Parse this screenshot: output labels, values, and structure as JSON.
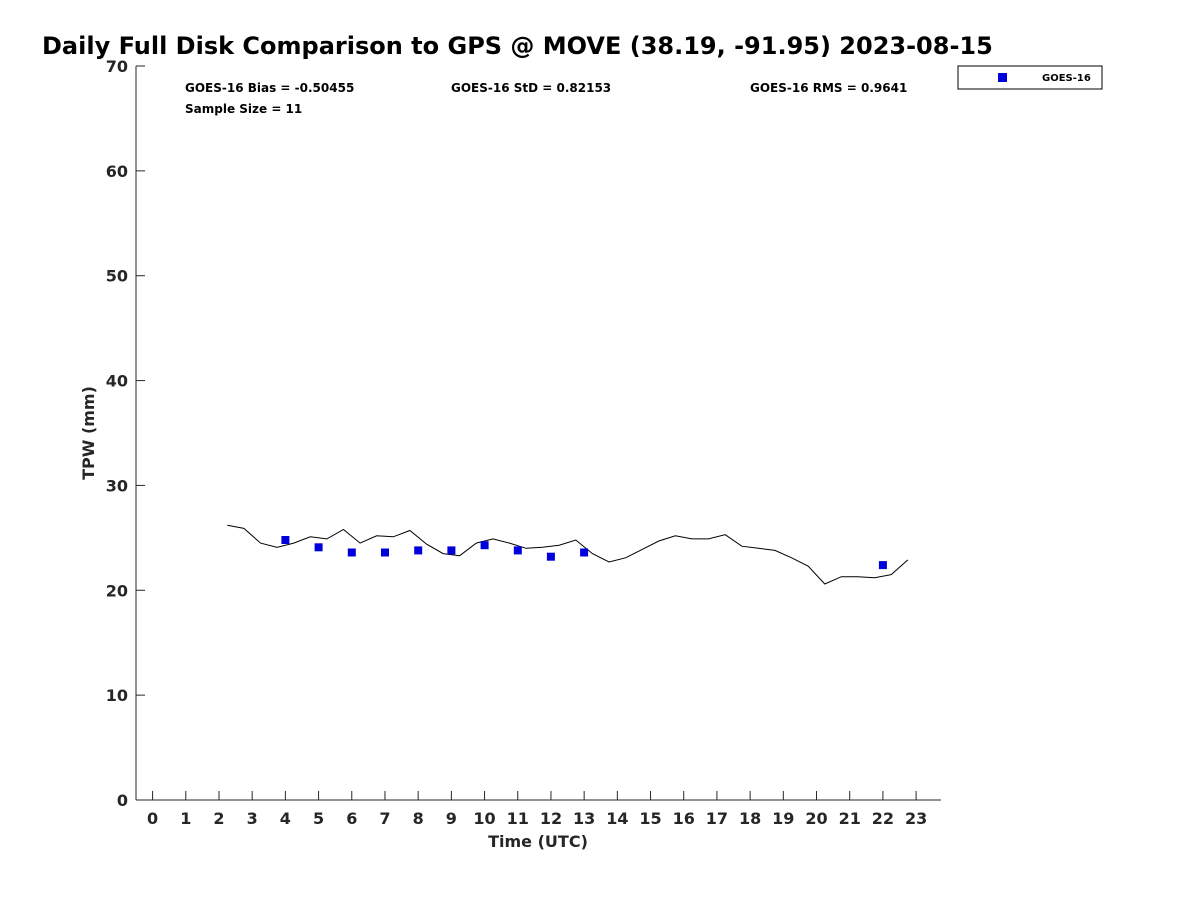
{
  "chart_data": {
    "type": "scatter",
    "title": "Daily Full Disk Comparison to GPS @ MOVE (38.19, -91.95) 2023-08-15",
    "xlabel": "Time (UTC)",
    "ylabel": "TPW (mm)",
    "xlim": [
      -0.5,
      23.75
    ],
    "ylim": [
      0,
      70
    ],
    "xticks": [
      0,
      1,
      2,
      3,
      4,
      5,
      6,
      7,
      8,
      9,
      10,
      11,
      12,
      13,
      14,
      15,
      16,
      17,
      18,
      19,
      20,
      21,
      22,
      23
    ],
    "yticks": [
      0,
      10,
      20,
      30,
      40,
      50,
      60,
      70
    ],
    "grid": false,
    "legend_position": "top-right",
    "stats": {
      "bias": "GOES-16 Bias = -0.50455",
      "std": "GOES-16 StD = 0.82153",
      "rms": "GOES-16 RMS = 0.9641",
      "sample": "Sample Size = 11"
    },
    "series": [
      {
        "name": "GOES-16",
        "marker": "square",
        "color": "#0000dd",
        "x": [
          4,
          5,
          6,
          7,
          8,
          9,
          10,
          11,
          12,
          13,
          22
        ],
        "y": [
          24.8,
          24.1,
          23.6,
          23.6,
          23.8,
          23.8,
          24.3,
          23.8,
          23.2,
          23.6,
          22.4
        ]
      },
      {
        "marker": "line",
        "color": "#000000",
        "x": [
          2.25,
          2.75,
          3.25,
          3.75,
          4.25,
          4.75,
          5.25,
          5.75,
          6.25,
          6.75,
          7.25,
          7.75,
          8.25,
          8.75,
          9.25,
          9.75,
          10.25,
          10.75,
          11.25,
          11.75,
          12.25,
          12.75,
          13.25,
          13.75,
          14.25,
          14.75,
          15.25,
          15.75,
          16.25,
          16.75,
          17.25,
          17.75,
          18.25,
          18.75,
          19.25,
          19.75,
          20.25,
          20.75,
          21.25,
          21.75,
          22.25,
          22.75
        ],
        "y": [
          26.2,
          25.9,
          24.5,
          24.1,
          24.5,
          25.1,
          24.9,
          25.8,
          24.5,
          25.2,
          25.1,
          25.7,
          24.4,
          23.5,
          23.3,
          24.5,
          24.9,
          24.5,
          24.0,
          24.1,
          24.3,
          24.8,
          23.5,
          22.7,
          23.1,
          23.9,
          24.7,
          25.2,
          24.9,
          24.9,
          25.3,
          24.2,
          24.0,
          23.8,
          23.1,
          22.3,
          20.6,
          21.3,
          21.3,
          21.2,
          21.5,
          22.9
        ]
      }
    ]
  }
}
